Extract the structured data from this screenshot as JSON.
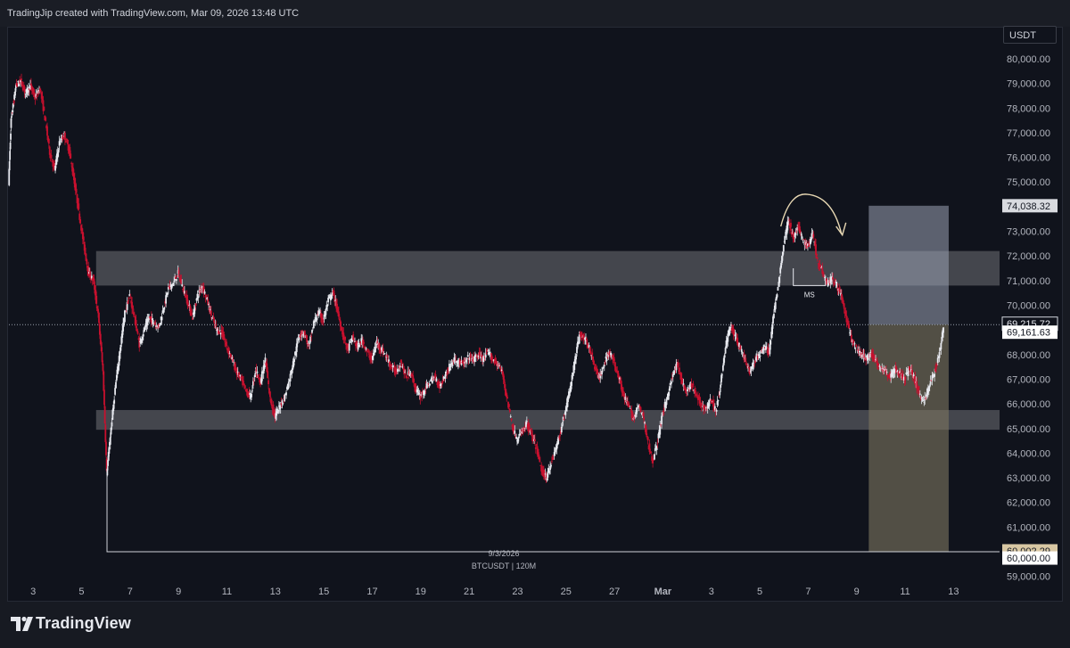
{
  "header": {
    "attribution": "TradingJip created with TradingView.com, Mar 09, 2026 13:48 UTC"
  },
  "currency_label": "USDT",
  "footer": {
    "logo_text": "TradingView"
  },
  "colors": {
    "up": "#e6e8ee",
    "down": "#c8102e",
    "background": "#10131c",
    "zone": "#ffffff",
    "target": "#9aa3b5",
    "stop": "#7a7460"
  },
  "chart_data": {
    "type": "candlestick",
    "symbol_label": "BTCUSDT | 120M",
    "date_label": "9/3/2026",
    "x_ticks": [
      "3",
      "5",
      "7",
      "9",
      "11",
      "13",
      "15",
      "17",
      "19",
      "21",
      "23",
      "25",
      "27",
      "Mar",
      "3",
      "5",
      "7",
      "9",
      "11",
      "13"
    ],
    "y_ticks": [
      "80,000.00",
      "79,000.00",
      "78,000.00",
      "77,000.00",
      "76,000.00",
      "75,000.00",
      "74,000.00",
      "73,000.00",
      "72,000.00",
      "71,000.00",
      "70,000.00",
      "69,000.00",
      "68,000.00",
      "67,000.00",
      "66,000.00",
      "65,000.00",
      "64,000.00",
      "63,000.00",
      "62,000.00",
      "61,000.00",
      "60,000.00",
      "59,000.00"
    ],
    "y_range": [
      58700,
      81300
    ],
    "x_range_days": [
      2.0,
      42.9
    ],
    "price_tags": [
      {
        "value": 74038.32,
        "text": "74,038.32",
        "style": "target"
      },
      {
        "value": 69215.72,
        "text": "69,215.72",
        "style": "dark"
      },
      {
        "value": 69161.63,
        "text": "69,161.63",
        "style": "white"
      },
      {
        "value": 60002.29,
        "text": "60,002.29",
        "style": "stop"
      },
      {
        "value": 60000.0,
        "text": "60,000.00",
        "style": "white"
      }
    ],
    "zones": [
      {
        "low": 70800,
        "high": 72200
      },
      {
        "low": 64950,
        "high": 65750
      }
    ],
    "position": {
      "entry": 69215.72,
      "target": 74038.32,
      "stop": 60002.29,
      "start_day": 37.5,
      "end_day": 40.8
    },
    "annotation": {
      "text": "MS",
      "day": 34.9,
      "low": 70700,
      "high": 71500
    },
    "anchor_line": {
      "day": 6.05,
      "value": 60002.29
    },
    "path": [
      [
        2.0,
        75000
      ],
      [
        2.1,
        77500
      ],
      [
        2.2,
        78200
      ],
      [
        2.3,
        78900
      ],
      [
        2.5,
        79100
      ],
      [
        2.7,
        78600
      ],
      [
        2.9,
        78900
      ],
      [
        3.1,
        78400
      ],
      [
        3.3,
        78800
      ],
      [
        3.5,
        77600
      ],
      [
        3.7,
        76200
      ],
      [
        3.9,
        75500
      ],
      [
        4.1,
        76600
      ],
      [
        4.3,
        76900
      ],
      [
        4.5,
        76300
      ],
      [
        4.7,
        75100
      ],
      [
        4.9,
        73800
      ],
      [
        5.1,
        72500
      ],
      [
        5.3,
        71300
      ],
      [
        5.5,
        71000
      ],
      [
        5.7,
        69600
      ],
      [
        5.9,
        67300
      ],
      [
        6.05,
        63200
      ],
      [
        6.2,
        64700
      ],
      [
        6.4,
        66600
      ],
      [
        6.6,
        68200
      ],
      [
        6.8,
        69700
      ],
      [
        7.0,
        70400
      ],
      [
        7.2,
        69500
      ],
      [
        7.4,
        68400
      ],
      [
        7.6,
        69000
      ],
      [
        7.8,
        69500
      ],
      [
        8.0,
        69300
      ],
      [
        8.2,
        69100
      ],
      [
        8.4,
        69900
      ],
      [
        8.6,
        70700
      ],
      [
        8.8,
        70900
      ],
      [
        9.0,
        71300
      ],
      [
        9.2,
        70700
      ],
      [
        9.4,
        70100
      ],
      [
        9.6,
        69500
      ],
      [
        9.8,
        70400
      ],
      [
        10.0,
        70800
      ],
      [
        10.2,
        70200
      ],
      [
        10.4,
        69500
      ],
      [
        10.6,
        69000
      ],
      [
        10.8,
        68900
      ],
      [
        11.0,
        68300
      ],
      [
        11.2,
        67900
      ],
      [
        11.4,
        67300
      ],
      [
        11.6,
        67000
      ],
      [
        11.8,
        66500
      ],
      [
        12.0,
        66300
      ],
      [
        12.2,
        67400
      ],
      [
        12.4,
        66900
      ],
      [
        12.6,
        67800
      ],
      [
        12.8,
        66200
      ],
      [
        13.0,
        65500
      ],
      [
        13.2,
        65900
      ],
      [
        13.4,
        66300
      ],
      [
        13.6,
        67000
      ],
      [
        13.8,
        67900
      ],
      [
        14.0,
        68800
      ],
      [
        14.2,
        68900
      ],
      [
        14.4,
        68300
      ],
      [
        14.6,
        69300
      ],
      [
        14.8,
        69700
      ],
      [
        15.0,
        69400
      ],
      [
        15.2,
        70200
      ],
      [
        15.4,
        70500
      ],
      [
        15.6,
        69700
      ],
      [
        15.8,
        68800
      ],
      [
        16.0,
        68200
      ],
      [
        16.2,
        68700
      ],
      [
        16.4,
        68300
      ],
      [
        16.6,
        68600
      ],
      [
        16.8,
        68100
      ],
      [
        17.0,
        67800
      ],
      [
        17.2,
        68500
      ],
      [
        17.4,
        68200
      ],
      [
        17.6,
        67900
      ],
      [
        17.8,
        67500
      ],
      [
        18.0,
        67300
      ],
      [
        18.2,
        67700
      ],
      [
        18.4,
        67100
      ],
      [
        18.6,
        67300
      ],
      [
        18.8,
        66600
      ],
      [
        19.0,
        66300
      ],
      [
        19.2,
        66600
      ],
      [
        19.4,
        66900
      ],
      [
        19.6,
        67100
      ],
      [
        19.8,
        66700
      ],
      [
        20.0,
        67100
      ],
      [
        20.2,
        67500
      ],
      [
        20.4,
        67800
      ],
      [
        20.6,
        67700
      ],
      [
        20.8,
        67600
      ],
      [
        21.0,
        67900
      ],
      [
        21.2,
        67800
      ],
      [
        21.4,
        68000
      ],
      [
        21.6,
        67800
      ],
      [
        21.8,
        68100
      ],
      [
        22.0,
        67800
      ],
      [
        22.2,
        67600
      ],
      [
        22.4,
        67200
      ],
      [
        22.6,
        66100
      ],
      [
        22.8,
        65100
      ],
      [
        23.0,
        64500
      ],
      [
        23.2,
        64900
      ],
      [
        23.4,
        65200
      ],
      [
        23.6,
        64700
      ],
      [
        23.8,
        64200
      ],
      [
        24.0,
        63300
      ],
      [
        24.2,
        63000
      ],
      [
        24.4,
        63600
      ],
      [
        24.6,
        64200
      ],
      [
        24.8,
        64900
      ],
      [
        25.0,
        65800
      ],
      [
        25.2,
        66700
      ],
      [
        25.4,
        67900
      ],
      [
        25.6,
        68900
      ],
      [
        25.8,
        68600
      ],
      [
        26.0,
        68200
      ],
      [
        26.2,
        67500
      ],
      [
        26.4,
        67000
      ],
      [
        26.6,
        67700
      ],
      [
        26.8,
        68100
      ],
      [
        27.0,
        67700
      ],
      [
        27.2,
        67100
      ],
      [
        27.4,
        66300
      ],
      [
        27.6,
        65900
      ],
      [
        27.8,
        65400
      ],
      [
        28.0,
        65900
      ],
      [
        28.2,
        65500
      ],
      [
        28.4,
        64400
      ],
      [
        28.6,
        63700
      ],
      [
        28.8,
        64500
      ],
      [
        29.0,
        65600
      ],
      [
        29.2,
        66300
      ],
      [
        29.4,
        67100
      ],
      [
        29.6,
        67600
      ],
      [
        29.8,
        66900
      ],
      [
        30.0,
        66400
      ],
      [
        30.2,
        66800
      ],
      [
        30.4,
        66300
      ],
      [
        30.6,
        66000
      ],
      [
        30.8,
        65800
      ],
      [
        31.0,
        66200
      ],
      [
        31.2,
        65700
      ],
      [
        31.4,
        66800
      ],
      [
        31.6,
        68300
      ],
      [
        31.8,
        69200
      ],
      [
        32.0,
        68700
      ],
      [
        32.2,
        68300
      ],
      [
        32.4,
        67800
      ],
      [
        32.6,
        67300
      ],
      [
        32.8,
        67700
      ],
      [
        33.0,
        68000
      ],
      [
        33.2,
        68300
      ],
      [
        33.4,
        68100
      ],
      [
        33.6,
        69700
      ],
      [
        33.8,
        71000
      ],
      [
        34.0,
        72500
      ],
      [
        34.2,
        73500
      ],
      [
        34.4,
        72700
      ],
      [
        34.6,
        73200
      ],
      [
        34.8,
        72600
      ],
      [
        35.0,
        72400
      ],
      [
        35.2,
        72900
      ],
      [
        35.4,
        71800
      ],
      [
        35.6,
        71400
      ],
      [
        35.8,
        70900
      ],
      [
        36.0,
        71100
      ],
      [
        36.2,
        70800
      ],
      [
        36.4,
        70300
      ],
      [
        36.6,
        69400
      ],
      [
        36.8,
        68600
      ],
      [
        37.0,
        68200
      ],
      [
        37.2,
        68000
      ],
      [
        37.4,
        67800
      ],
      [
        37.6,
        68100
      ],
      [
        37.8,
        67700
      ],
      [
        38.0,
        67500
      ],
      [
        38.2,
        67300
      ],
      [
        38.4,
        67100
      ],
      [
        38.6,
        67400
      ],
      [
        38.8,
        67200
      ],
      [
        39.0,
        67000
      ],
      [
        39.2,
        67500
      ],
      [
        39.4,
        67000
      ],
      [
        39.6,
        66400
      ],
      [
        39.8,
        66100
      ],
      [
        40.0,
        66700
      ],
      [
        40.2,
        67200
      ],
      [
        40.4,
        67900
      ],
      [
        40.6,
        69200
      ]
    ]
  }
}
